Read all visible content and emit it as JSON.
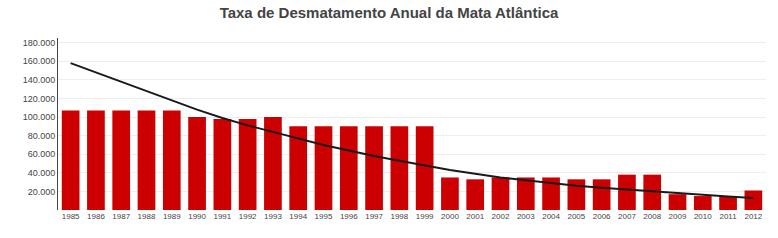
{
  "chart_data": {
    "type": "bar",
    "title": "Taxa de Desmatamento Anual da Mata Atlântica",
    "categories": [
      "1985",
      "1986",
      "1987",
      "1988",
      "1989",
      "1990",
      "1991",
      "1992",
      "1993",
      "1994",
      "1995",
      "1996",
      "1997",
      "1998",
      "1999",
      "2000",
      "2001",
      "2002",
      "2003",
      "2004",
      "2005",
      "2006",
      "2007",
      "2008",
      "2009",
      "2010",
      "2011",
      "2012"
    ],
    "series": [
      {
        "type": "bar",
        "color": "#cc0000",
        "values": [
          107000,
          107000,
          107000,
          107000,
          107000,
          100000,
          98000,
          98000,
          100000,
          90000,
          90000,
          90000,
          90000,
          90000,
          90000,
          35000,
          33000,
          35000,
          35000,
          35000,
          33000,
          33000,
          38000,
          38000,
          17000,
          15000,
          15000,
          21000
        ]
      },
      {
        "type": "line",
        "color": "#1a1a1a",
        "values": [
          158000,
          148000,
          138000,
          128000,
          118000,
          108000,
          99000,
          91000,
          84000,
          77000,
          70000,
          64000,
          58000,
          53000,
          48000,
          43000,
          39000,
          35000,
          32000,
          29000,
          26000,
          24000,
          22000,
          20000,
          18000,
          16000,
          14500,
          13000
        ]
      }
    ],
    "ylim": [
      0,
      185000
    ],
    "yticks": [
      {
        "value": 20000,
        "label": "20.000"
      },
      {
        "value": 40000,
        "label": "40.000"
      },
      {
        "value": 60000,
        "label": "60.000"
      },
      {
        "value": 80000,
        "label": "80.000"
      },
      {
        "value": 100000,
        "label": "100.000"
      },
      {
        "value": 120000,
        "label": "120.000"
      },
      {
        "value": 140000,
        "label": "140.000"
      },
      {
        "value": 160000,
        "label": "160.000"
      },
      {
        "value": 180000,
        "label": "180.000"
      }
    ],
    "grid": true
  }
}
